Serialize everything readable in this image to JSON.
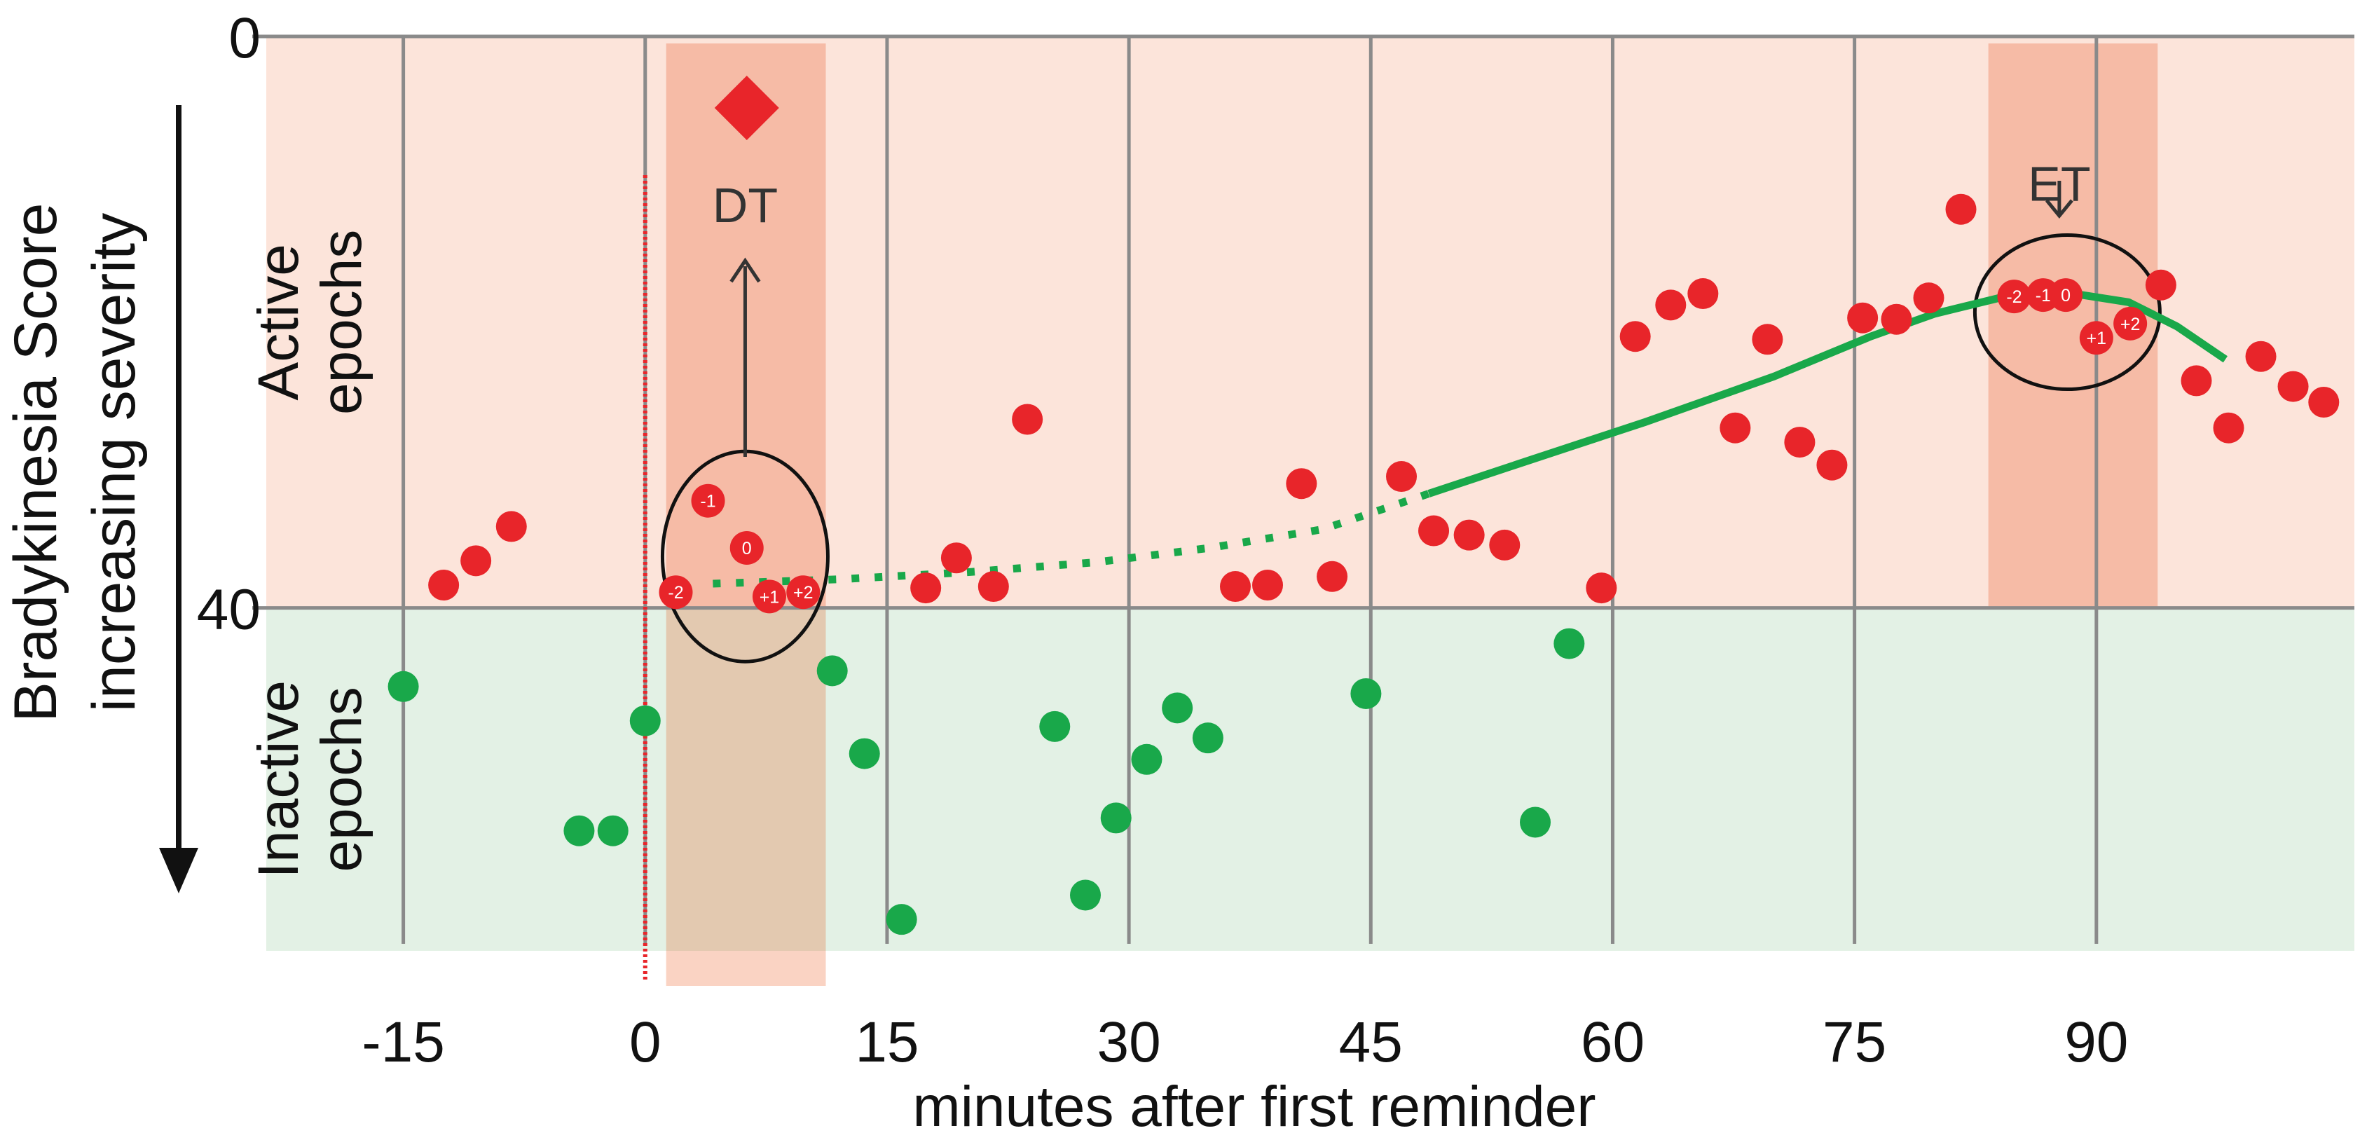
{
  "chart_data": {
    "type": "scatter",
    "xlabel": "minutes after first reminder",
    "ylabel": "Bradykinesia Score",
    "ylabel_sub": "increasing severity",
    "x_ticks": [
      "-15",
      "0",
      "15",
      "30",
      "45",
      "60",
      "75",
      "90"
    ],
    "x_tick_values": [
      -15,
      0,
      15,
      30,
      45,
      60,
      75,
      90
    ],
    "xlim": [
      -23.5,
      106
    ],
    "y_ticks": [
      "0",
      "40"
    ],
    "y_tick_values": [
      0,
      40
    ],
    "ylim": [
      0,
      64
    ],
    "y_inverted": true,
    "bands": [
      {
        "line1": "Active",
        "line2": "epochs",
        "y_from": 0,
        "y_to": 40,
        "color": "#fce4da"
      },
      {
        "line1": "Inactive",
        "line2": "epochs",
        "y_from": 40,
        "y_to": 64,
        "color": "#e3f1e5"
      }
    ],
    "windows": [
      {
        "x_from": 1.3,
        "x_to": 11.2,
        "color": "#f6bba6"
      },
      {
        "x_from": 83.3,
        "x_to": 93.8,
        "color": "#f6bba6"
      }
    ],
    "reminder_line_x": 0,
    "annotations": [
      {
        "text": "DT",
        "x": 6.2,
        "y": 13
      },
      {
        "text": "ET",
        "x": 87.7,
        "y": 11.5
      }
    ],
    "marker": {
      "shape": "diamond",
      "x": 6.3,
      "y": 5,
      "color": "#e8252a"
    },
    "series": [
      {
        "color": "#e8252a",
        "points": [
          {
            "x": -12.5,
            "y": 38.4
          },
          {
            "x": -10.5,
            "y": 36.7
          },
          {
            "x": -8.3,
            "y": 34.3
          },
          {
            "x": 1.9,
            "y": 38.9,
            "label": "-2"
          },
          {
            "x": 3.9,
            "y": 32.5,
            "label": "-1"
          },
          {
            "x": 6.3,
            "y": 35.8,
            "label": "0"
          },
          {
            "x": 7.7,
            "y": 39.2,
            "label": "+1"
          },
          {
            "x": 9.8,
            "y": 38.9,
            "label": "+2"
          },
          {
            "x": 17.4,
            "y": 38.6
          },
          {
            "x": 19.3,
            "y": 36.5
          },
          {
            "x": 21.6,
            "y": 38.5
          },
          {
            "x": 23.7,
            "y": 26.8
          },
          {
            "x": 36.6,
            "y": 38.5
          },
          {
            "x": 38.6,
            "y": 38.4
          },
          {
            "x": 40.7,
            "y": 31.3
          },
          {
            "x": 42.6,
            "y": 37.8
          },
          {
            "x": 46.9,
            "y": 30.8
          },
          {
            "x": 48.9,
            "y": 34.6
          },
          {
            "x": 51.1,
            "y": 34.9
          },
          {
            "x": 53.3,
            "y": 35.6
          },
          {
            "x": 59.3,
            "y": 38.6
          },
          {
            "x": 61.4,
            "y": 21.0
          },
          {
            "x": 63.6,
            "y": 18.8
          },
          {
            "x": 65.6,
            "y": 18.0
          },
          {
            "x": 67.6,
            "y": 27.4
          },
          {
            "x": 69.6,
            "y": 21.2
          },
          {
            "x": 71.6,
            "y": 28.4
          },
          {
            "x": 73.6,
            "y": 30.0
          },
          {
            "x": 75.5,
            "y": 19.7
          },
          {
            "x": 77.6,
            "y": 19.8
          },
          {
            "x": 79.6,
            "y": 18.3
          },
          {
            "x": 81.6,
            "y": 12.1
          },
          {
            "x": 84.9,
            "y": 18.2,
            "label": "-2"
          },
          {
            "x": 86.7,
            "y": 18.1,
            "label": "-1"
          },
          {
            "x": 88.1,
            "y": 18.1,
            "label": "0"
          },
          {
            "x": 90.0,
            "y": 21.1,
            "label": "+1"
          },
          {
            "x": 92.1,
            "y": 20.1,
            "label": "+2"
          },
          {
            "x": 94.0,
            "y": 17.4
          },
          {
            "x": 96.2,
            "y": 24.1
          },
          {
            "x": 98.2,
            "y": 27.4
          },
          {
            "x": 100.2,
            "y": 22.4
          },
          {
            "x": 102.2,
            "y": 24.5
          },
          {
            "x": 104.1,
            "y": 25.6
          }
        ]
      },
      {
        "color": "#19a84a",
        "points": [
          {
            "x": -15.0,
            "y": 45.5
          },
          {
            "x": -4.1,
            "y": 55.6
          },
          {
            "x": -2.0,
            "y": 55.6
          },
          {
            "x": 0.0,
            "y": 47.9
          },
          {
            "x": 11.6,
            "y": 44.4
          },
          {
            "x": 13.6,
            "y": 50.2
          },
          {
            "x": 15.9,
            "y": 61.8
          },
          {
            "x": 25.4,
            "y": 48.3
          },
          {
            "x": 27.3,
            "y": 60.1
          },
          {
            "x": 29.2,
            "y": 54.7
          },
          {
            "x": 31.1,
            "y": 50.6
          },
          {
            "x": 33.0,
            "y": 47.0
          },
          {
            "x": 34.9,
            "y": 49.1
          },
          {
            "x": 44.7,
            "y": 46.0
          },
          {
            "x": 55.2,
            "y": 55.0
          },
          {
            "x": 57.3,
            "y": 42.5
          }
        ]
      }
    ],
    "trend": {
      "color": "#19a84a",
      "dotted": [
        {
          "x": 4.2,
          "y": 38.3
        },
        {
          "x": 12,
          "y": 38.0
        },
        {
          "x": 20,
          "y": 37.5
        },
        {
          "x": 28,
          "y": 36.8
        },
        {
          "x": 35,
          "y": 35.8
        },
        {
          "x": 42,
          "y": 34.5
        },
        {
          "x": 48.6,
          "y": 32.0
        }
      ],
      "solid": [
        {
          "x": 48.6,
          "y": 32.0
        },
        {
          "x": 55,
          "y": 29.6
        },
        {
          "x": 62,
          "y": 27.0
        },
        {
          "x": 70,
          "y": 23.8
        },
        {
          "x": 76,
          "y": 21.0
        },
        {
          "x": 80,
          "y": 19.4
        },
        {
          "x": 84,
          "y": 18.3
        },
        {
          "x": 88,
          "y": 17.9
        },
        {
          "x": 92,
          "y": 18.6
        },
        {
          "x": 95,
          "y": 20.3
        },
        {
          "x": 98,
          "y": 22.6
        }
      ]
    }
  }
}
